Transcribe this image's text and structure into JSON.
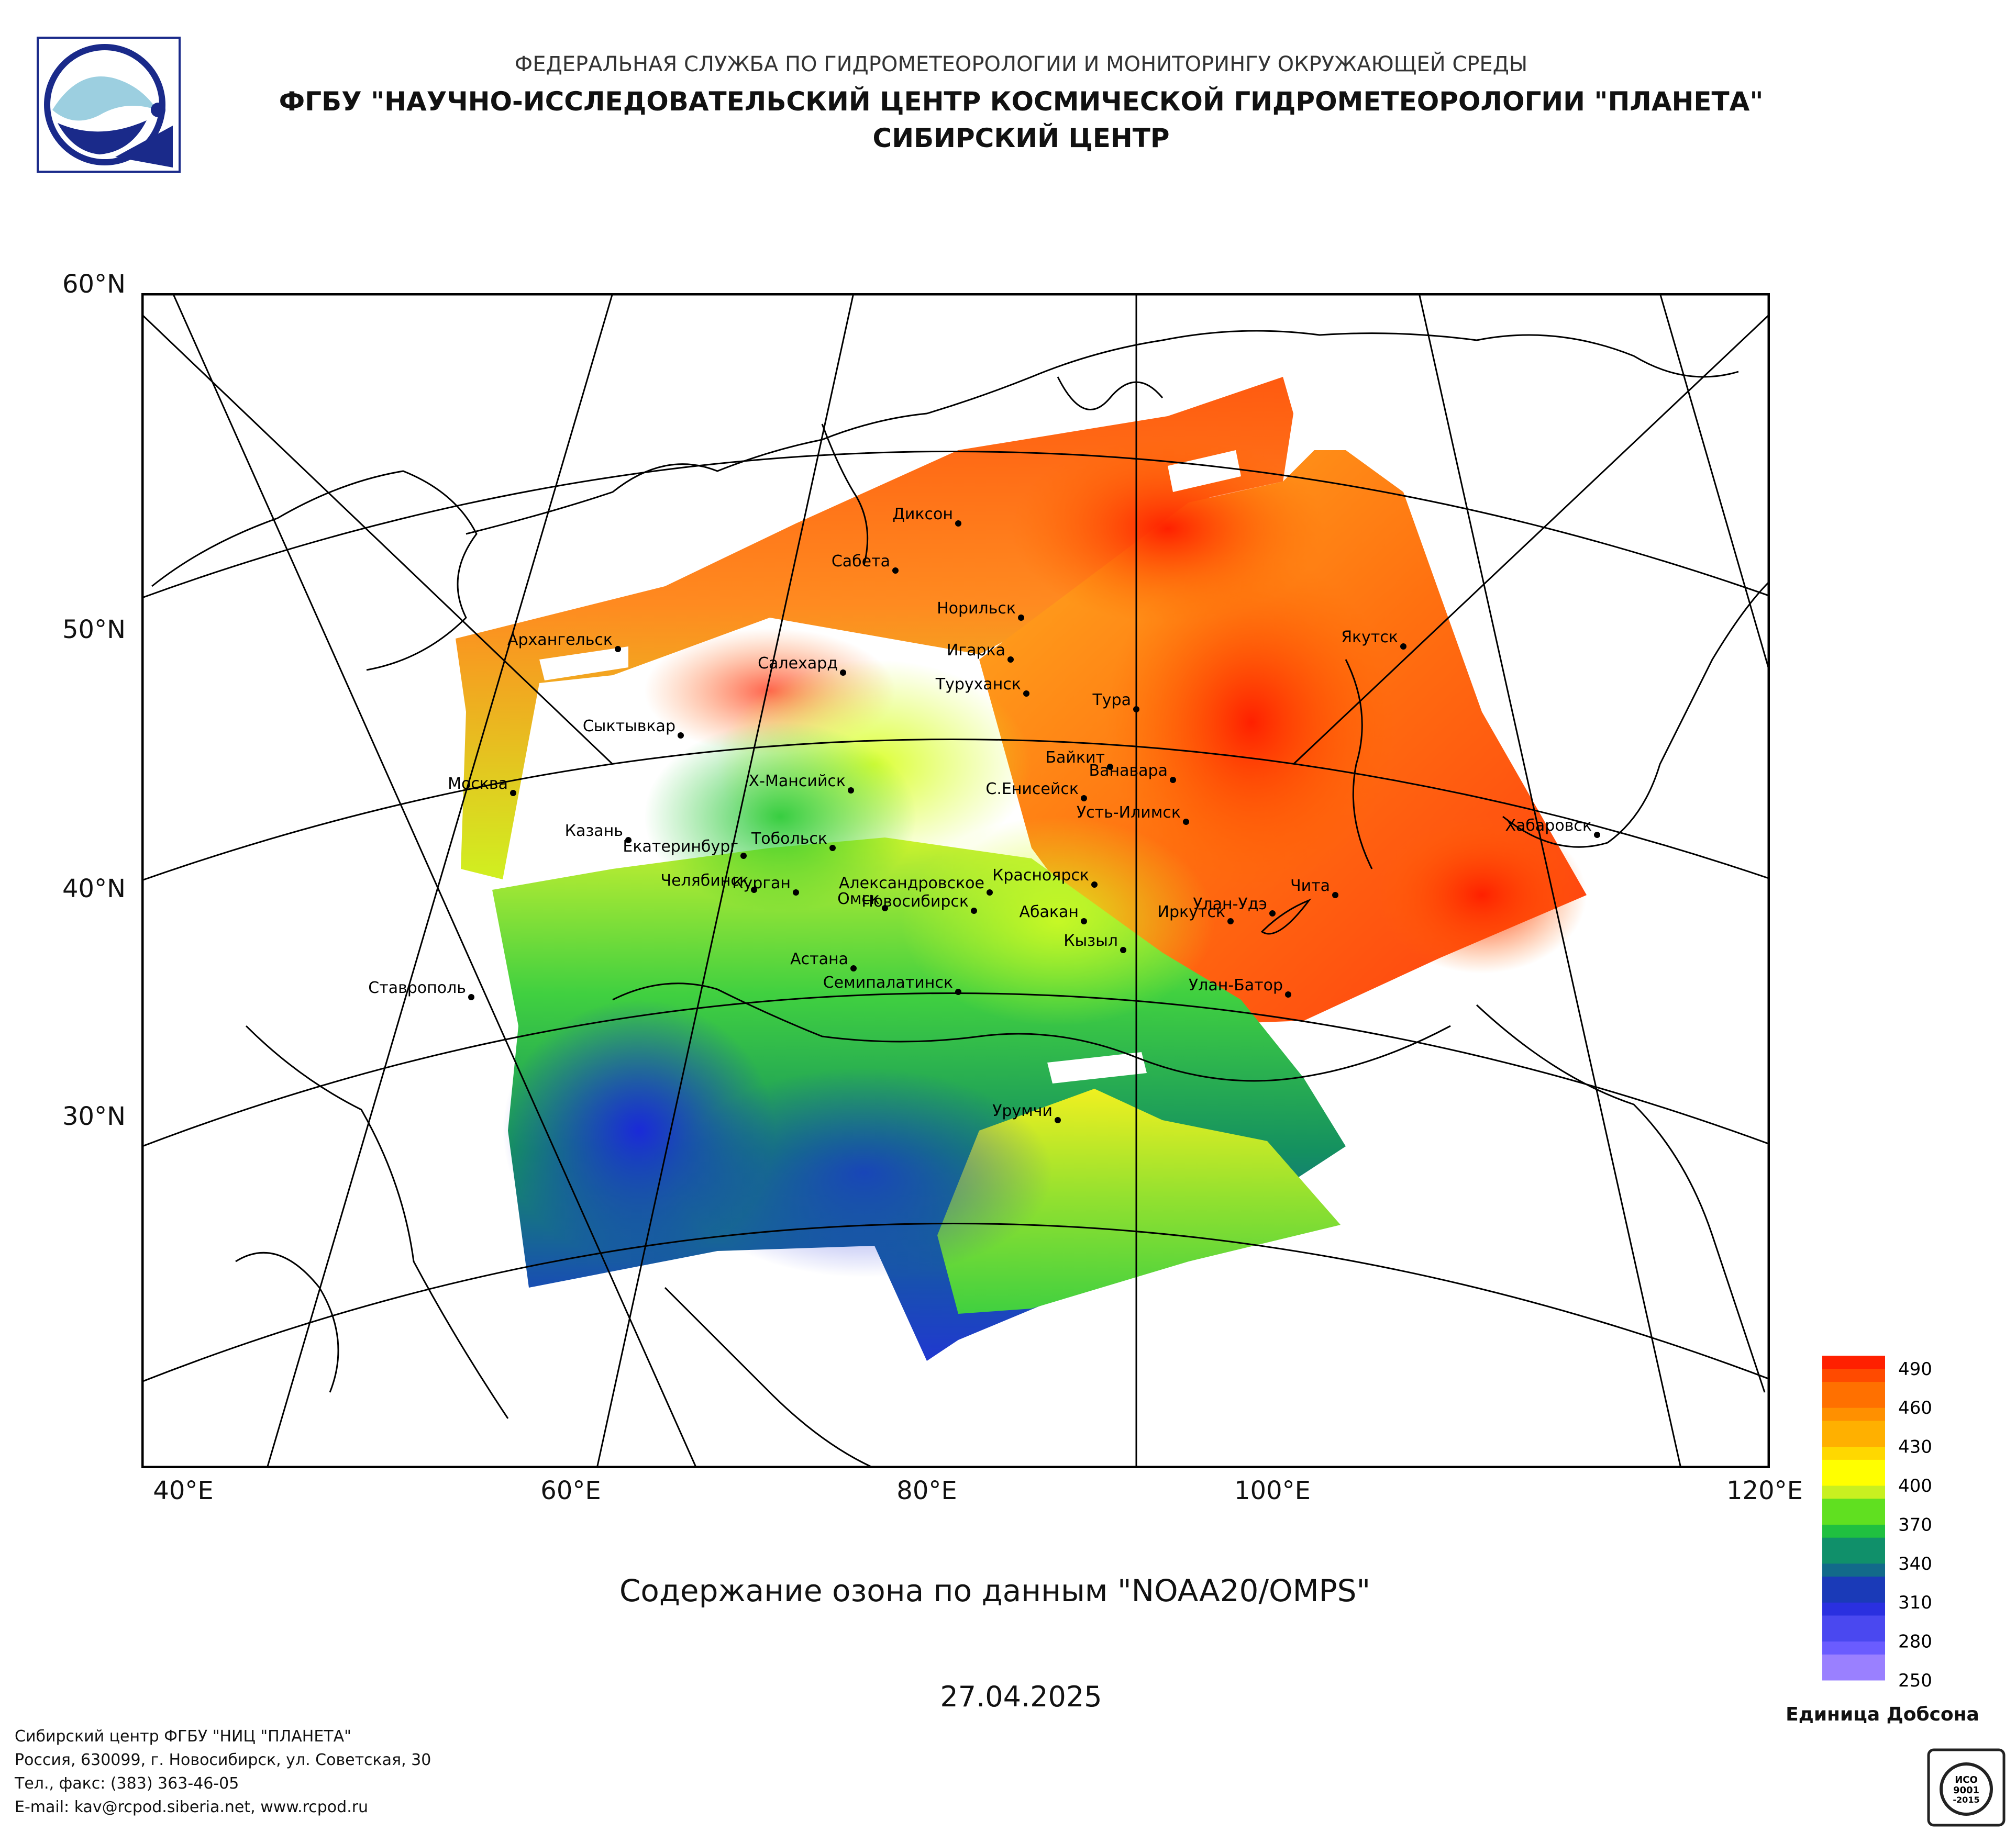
{
  "header": {
    "line1": "ФЕДЕРАЛЬНАЯ СЛУЖБА ПО ГИДРОМЕТЕОРОЛОГИИ И МОНИТОРИНГУ ОКРУЖАЮЩЕЙ СРЕДЫ",
    "line2": "ФГБУ \"НАУЧНО-ИССЛЕДОВАТЕЛЬСКИЙ ЦЕНТР КОСМИЧЕСКОЙ ГИДРОМЕТЕОРОЛОГИИ \"ПЛАНЕТА\"",
    "line3": "СИБИРСКИЙ ЦЕНТР"
  },
  "map": {
    "title": "Содержание озона по данным \"NOAA20/OMPS\"",
    "date": "27.04.2025",
    "lat_labels": [
      "60°N",
      "50°N",
      "40°N",
      "30°N"
    ],
    "lon_labels": [
      "40°E",
      "60°E",
      "80°E",
      "100°E",
      "120°E"
    ],
    "cities": [
      "Диксон",
      "Сабета",
      "Норильск",
      "Игарка",
      "Архангельск",
      "Салехард",
      "Туруханск",
      "Тура",
      "Якутск",
      "Сыктывкар",
      "Байкит",
      "Ванавара",
      "Москва",
      "Х-Мансийск",
      "С.Енисейск",
      "Усть-Илимск",
      "Хабаровск",
      "Казань",
      "Тобольск",
      "Екатеринбург",
      "Челябинск",
      "Курган",
      "Александровское",
      "Красноярск",
      "Чита",
      "Омск",
      "Новосибирск",
      "Улан-Удэ",
      "Абакан",
      "Иркутск",
      "Кызыл",
      "Астана",
      "Ставрополь",
      "Семипалатинск",
      "Улан-Батор",
      "Урумчи"
    ]
  },
  "legend": {
    "unit": "Единица Добсона",
    "ticks": [
      490,
      460,
      430,
      400,
      370,
      340,
      310,
      280,
      250
    ],
    "range": [
      250,
      500
    ]
  },
  "footer": {
    "line1": "Сибирский центр ФГБУ \"НИЦ \"ПЛАНЕТА\"",
    "line2": "Россия, 630099, г. Новосибирск, ул. Советская, 30",
    "line3": "Тел., факс: (383) 363-46-05",
    "line4": "E-mail: kav@rcpod.siberia.net, www.rcpod.ru"
  },
  "badge": {
    "text1": "ИСО",
    "text2": "9001",
    "text3": "-2015"
  },
  "colors": {
    "high": "#ff1a00",
    "mid": "#ffff00",
    "low_green": "#00b050",
    "low_blue": "#1a30c8"
  }
}
